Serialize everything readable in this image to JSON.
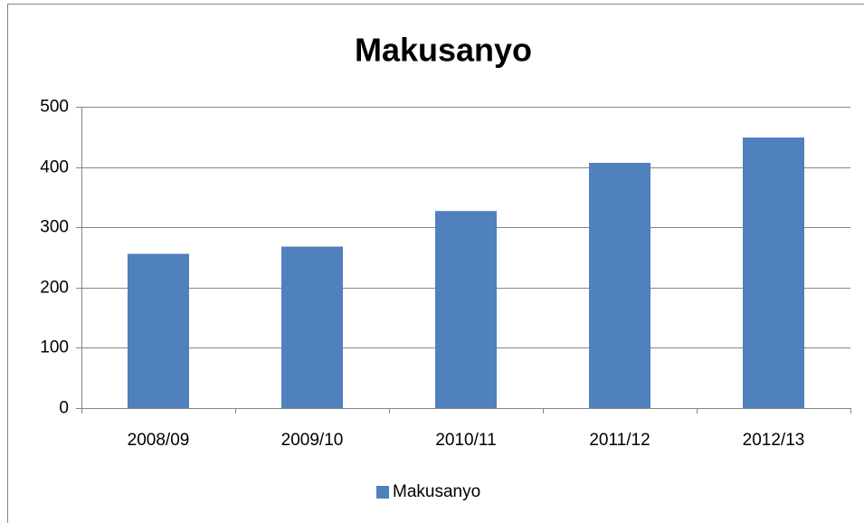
{
  "chart_data": {
    "type": "bar",
    "title": "Makusanyo",
    "categories": [
      "2008/09",
      "2009/10",
      "2010/11",
      "2011/12",
      "2012/13"
    ],
    "series": [
      {
        "name": "Makusanyo",
        "color": "#4f81bd",
        "values": [
          256,
          268,
          327,
          407,
          449
        ]
      }
    ],
    "ylim": [
      0,
      500
    ],
    "yticks": [
      0,
      100,
      200,
      300,
      400,
      500
    ],
    "grid": true,
    "legend": "bottom"
  }
}
